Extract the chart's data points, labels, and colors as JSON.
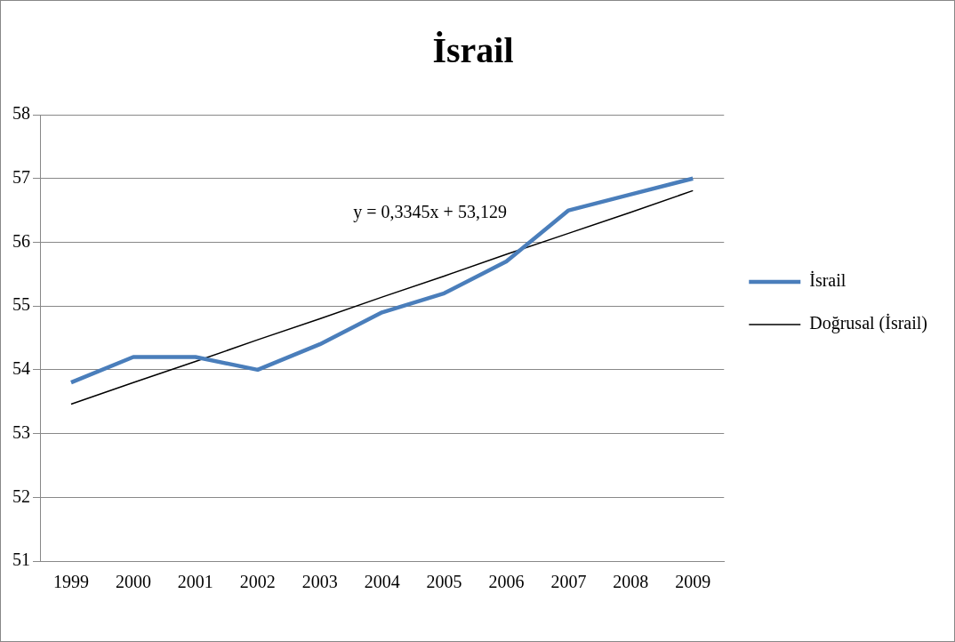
{
  "chart_data": {
    "type": "line",
    "title": "İsrail",
    "categories": [
      "1999",
      "2000",
      "2001",
      "2002",
      "2003",
      "2004",
      "2005",
      "2006",
      "2007",
      "2008",
      "2009"
    ],
    "series": [
      {
        "name": "İsrail",
        "color": "#4a7ebb",
        "values": [
          53.8,
          54.2,
          54.2,
          54.0,
          54.4,
          54.9,
          55.2,
          55.7,
          56.5,
          56.75,
          57.0
        ]
      },
      {
        "name": "Doğrusal (İsrail)",
        "color": "#000000",
        "values": [
          53.46,
          53.8,
          54.13,
          54.47,
          54.8,
          55.14,
          55.47,
          55.81,
          56.14,
          56.47,
          56.81
        ]
      }
    ],
    "ylim": [
      51,
      58
    ],
    "yticks": [
      51,
      52,
      53,
      54,
      55,
      56,
      57,
      58
    ],
    "grid": "y",
    "legend": "right",
    "marker": "none",
    "line_style": "solid",
    "annotations": [
      "y = 0,3345x + 53,129"
    ]
  }
}
